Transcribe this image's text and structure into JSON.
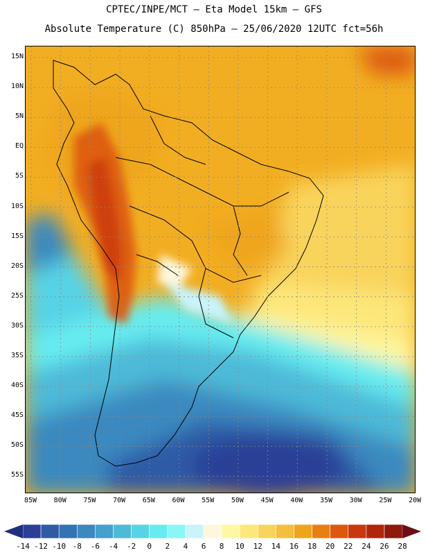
{
  "header": {
    "line1": "CPTEC/INPE/MCT –  Eta Model 15km – GFS",
    "line2": "Absolute Temperature (C) 850hPa – 25/06/2020 12UTC fct=56h"
  },
  "map": {
    "lat_labels": [
      "15N",
      "10N",
      "5N",
      "EQ",
      "5S",
      "10S",
      "15S",
      "20S",
      "25S",
      "30S",
      "35S",
      "40S",
      "45S",
      "50S",
      "55S"
    ],
    "lon_labels": [
      "85W",
      "80W",
      "75W",
      "70W",
      "65W",
      "60W",
      "55W",
      "50W",
      "45W",
      "40W",
      "35W",
      "30W",
      "25W",
      "20W"
    ]
  },
  "colorbar": {
    "labels": [
      "-14",
      "-12",
      "-10",
      "-8",
      "-6",
      "-4",
      "-2",
      "0",
      "2",
      "4",
      "6",
      "8",
      "10",
      "12",
      "14",
      "16",
      "18",
      "20",
      "22",
      "24",
      "26",
      "28"
    ],
    "colors": [
      "#2b3f96",
      "#2f5aa6",
      "#3473b3",
      "#3b89bf",
      "#44a0cc",
      "#4dbad8",
      "#57d3e6",
      "#66ecf0",
      "#8af7f7",
      "#c8f4fa",
      "#fff7dc",
      "#fff7a4",
      "#fde77a",
      "#f9d45c",
      "#f4bf3c",
      "#efa51b",
      "#e97f10",
      "#dd580e",
      "#c9370d",
      "#b0260c",
      "#8f1a0b"
    ],
    "low_arrow_color": "#1f2f7c",
    "high_arrow_color": "#6b0f14"
  }
}
